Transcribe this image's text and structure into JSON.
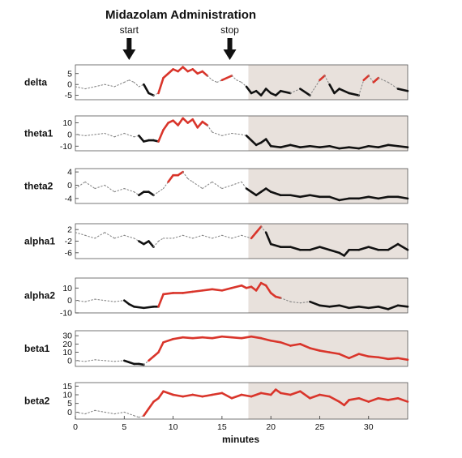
{
  "chart_data": {
    "type": "line",
    "title": "Midazolam Administration",
    "xlabel": "minutes",
    "xlim": [
      0,
      34
    ],
    "x_ticks": [
      0,
      5,
      10,
      15,
      20,
      25,
      30
    ],
    "markers": [
      {
        "label": "start",
        "x": 5.5
      },
      {
        "label": "stop",
        "x": 15.8
      }
    ],
    "shaded_region": {
      "x_start": 17.7,
      "x_end": 34,
      "color": "#e8e1dc"
    },
    "colors": {
      "elevated": "#d9352b",
      "depressed": "#111111",
      "neutral": "#888888"
    },
    "panels": [
      {
        "name": "delta",
        "ylim": [
          -7,
          9
        ],
        "yticks": [
          5,
          0,
          -5
        ],
        "x": [
          0,
          1,
          2,
          3,
          4,
          5,
          5.5,
          6,
          6.5,
          7,
          7.5,
          8,
          8.5,
          9,
          9.5,
          10,
          10.5,
          11,
          11.5,
          12,
          12.5,
          13,
          13.5,
          14,
          14.5,
          15,
          15.5,
          16,
          16.5,
          17,
          17.5,
          18,
          18.5,
          19,
          19.5,
          20,
          20.5,
          21,
          22,
          23,
          24,
          25,
          25.5,
          26,
          26.5,
          27,
          28,
          29,
          29.5,
          30,
          30.5,
          31,
          32,
          33,
          34
        ],
        "y": [
          -1,
          -2,
          -1,
          0,
          -1,
          1,
          2,
          1,
          -1,
          0,
          -4,
          -5,
          -4,
          3,
          5,
          7,
          6,
          8,
          6,
          7,
          5,
          6,
          4,
          2,
          1,
          2,
          3,
          4,
          2,
          1,
          -1,
          -4,
          -3,
          -5,
          -2,
          -4,
          -5,
          -3,
          -4,
          -2,
          -5,
          2,
          4,
          0,
          -4,
          -2,
          -4,
          -5,
          2,
          4,
          1,
          3,
          1,
          -2,
          -3
        ],
        "state": [
          "n",
          "n",
          "n",
          "n",
          "n",
          "n",
          "n",
          "n",
          "n",
          "n",
          "d",
          "d",
          "n",
          "e",
          "e",
          "e",
          "e",
          "e",
          "e",
          "e",
          "e",
          "e",
          "e",
          "n",
          "n",
          "n",
          "e",
          "e",
          "n",
          "n",
          "n",
          "d",
          "d",
          "d",
          "d",
          "d",
          "d",
          "d",
          "d",
          "n",
          "d",
          "n",
          "e",
          "n",
          "d",
          "d",
          "d",
          "d",
          "n",
          "e",
          "n",
          "e",
          "n",
          "n",
          "d"
        ]
      },
      {
        "name": "theta1",
        "ylim": [
          -14,
          16
        ],
        "yticks": [
          10,
          0,
          -10
        ],
        "x": [
          0,
          1,
          2,
          3,
          4,
          5,
          6,
          6.5,
          7,
          7.5,
          8,
          8.5,
          9,
          9.5,
          10,
          10.5,
          11,
          11.5,
          12,
          12.5,
          13,
          13.5,
          14,
          15,
          16,
          17,
          17.5,
          18,
          18.5,
          19,
          19.5,
          20,
          21,
          22,
          23,
          24,
          25,
          26,
          27,
          28,
          29,
          30,
          31,
          32,
          33,
          34
        ],
        "y": [
          0,
          -1,
          0,
          1,
          -2,
          1,
          -2,
          -1,
          -6,
          -5,
          -5,
          -6,
          4,
          10,
          12,
          8,
          14,
          10,
          13,
          6,
          11,
          8,
          2,
          -1,
          1,
          0,
          -1,
          -5,
          -9,
          -7,
          -4,
          -10,
          -11,
          -9,
          -11,
          -10,
          -11,
          -10,
          -12,
          -11,
          -12,
          -10,
          -11,
          -9,
          -10,
          -11
        ],
        "state": [
          "n",
          "n",
          "n",
          "n",
          "n",
          "n",
          "n",
          "n",
          "d",
          "d",
          "d",
          "d",
          "e",
          "e",
          "e",
          "e",
          "e",
          "e",
          "e",
          "e",
          "e",
          "e",
          "n",
          "n",
          "n",
          "n",
          "n",
          "d",
          "d",
          "d",
          "d",
          "d",
          "d",
          "d",
          "d",
          "d",
          "d",
          "d",
          "d",
          "d",
          "d",
          "d",
          "d",
          "d",
          "d",
          "d"
        ]
      },
      {
        "name": "theta2",
        "ylim": [
          -5.5,
          5
        ],
        "yticks": [
          4,
          0,
          -4
        ],
        "x": [
          0,
          1,
          2,
          3,
          4,
          5,
          6,
          6.5,
          7,
          7.5,
          8,
          8.5,
          9,
          9.5,
          10,
          10.5,
          11,
          11.5,
          12,
          13,
          14,
          15,
          16,
          17,
          17.5,
          18,
          18.5,
          19,
          19.5,
          20,
          21,
          22,
          23,
          24,
          25,
          26,
          27,
          28,
          29,
          30,
          31,
          32,
          33,
          34
        ],
        "y": [
          -1,
          1,
          -1,
          0,
          -2,
          -1,
          -2,
          -3,
          -2,
          -2,
          -3,
          -2,
          -1,
          1,
          3,
          3,
          4,
          2,
          1,
          -1,
          1,
          -1,
          0,
          1,
          -1,
          -2,
          -3,
          -2,
          -1,
          -2,
          -3,
          -3,
          -3.5,
          -3,
          -3.5,
          -3.5,
          -4.5,
          -4,
          -4,
          -3.5,
          -4,
          -3.5,
          -3.5,
          -4
        ],
        "state": [
          "n",
          "n",
          "n",
          "n",
          "n",
          "n",
          "n",
          "n",
          "d",
          "d",
          "d",
          "n",
          "n",
          "n",
          "e",
          "e",
          "e",
          "n",
          "n",
          "n",
          "n",
          "n",
          "n",
          "n",
          "n",
          "d",
          "d",
          "d",
          "d",
          "d",
          "d",
          "d",
          "d",
          "d",
          "d",
          "d",
          "d",
          "d",
          "d",
          "d",
          "d",
          "d",
          "d",
          "d"
        ]
      },
      {
        "name": "alpha1",
        "ylim": [
          -8,
          4
        ],
        "yticks": [
          2,
          -2,
          -6
        ],
        "x": [
          0,
          1,
          2,
          3,
          4,
          5,
          6,
          6.5,
          7,
          7.5,
          8,
          8.5,
          9,
          10,
          11,
          12,
          13,
          14,
          15,
          16,
          17,
          18,
          18.5,
          19,
          19.5,
          20,
          21,
          22,
          23,
          24,
          25,
          26,
          27,
          27.5,
          28,
          29,
          30,
          31,
          32,
          33,
          34
        ],
        "y": [
          1,
          0,
          -1,
          1,
          -1,
          0,
          -1,
          -2,
          -3,
          -2,
          -4,
          -2,
          -1,
          -1,
          0,
          -1,
          0,
          -1,
          0,
          -1,
          0,
          -1,
          1,
          3,
          1,
          -3,
          -4,
          -4,
          -5,
          -5,
          -4,
          -5,
          -6,
          -7,
          -5,
          -5,
          -4,
          -5,
          -5,
          -3,
          -5
        ],
        "state": [
          "n",
          "n",
          "n",
          "n",
          "n",
          "n",
          "n",
          "n",
          "d",
          "d",
          "d",
          "n",
          "n",
          "n",
          "n",
          "n",
          "n",
          "n",
          "n",
          "n",
          "n",
          "n",
          "e",
          "e",
          "n",
          "d",
          "d",
          "d",
          "d",
          "d",
          "d",
          "d",
          "d",
          "d",
          "d",
          "d",
          "d",
          "d",
          "d",
          "d",
          "d"
        ]
      },
      {
        "name": "alpha2",
        "ylim": [
          -10,
          18
        ],
        "yticks": [
          10,
          0,
          -10
        ],
        "x": [
          0,
          1,
          2,
          3,
          4,
          5,
          5.5,
          6,
          7,
          8,
          8.5,
          9,
          10,
          11,
          12,
          13,
          14,
          15,
          16,
          17,
          17.5,
          18,
          18.5,
          19,
          19.5,
          20,
          20.5,
          21,
          22,
          23,
          24,
          25,
          26,
          27,
          28,
          29,
          30,
          31,
          32,
          33,
          34
        ],
        "y": [
          0,
          -1,
          1,
          0,
          -1,
          0,
          -3,
          -5,
          -6,
          -5,
          -5,
          5,
          6,
          6,
          7,
          8,
          9,
          8,
          10,
          12,
          10,
          11,
          8,
          14,
          12,
          6,
          3,
          2,
          -1,
          -2,
          -1,
          -4,
          -5,
          -4,
          -6,
          -5,
          -6,
          -5,
          -7,
          -4,
          -5
        ],
        "state": [
          "n",
          "n",
          "n",
          "n",
          "n",
          "n",
          "d",
          "d",
          "d",
          "d",
          "d",
          "e",
          "e",
          "e",
          "e",
          "e",
          "e",
          "e",
          "e",
          "e",
          "e",
          "e",
          "e",
          "e",
          "e",
          "e",
          "e",
          "e",
          "n",
          "n",
          "n",
          "d",
          "d",
          "d",
          "d",
          "d",
          "d",
          "d",
          "d",
          "d",
          "d"
        ]
      },
      {
        "name": "beta1",
        "ylim": [
          -7,
          36
        ],
        "yticks": [
          30,
          20,
          10,
          0
        ],
        "x": [
          0,
          1,
          2,
          3,
          4,
          5,
          5.5,
          6,
          6.5,
          7,
          7.5,
          8,
          8.5,
          9,
          10,
          11,
          12,
          13,
          14,
          15,
          16,
          17,
          18,
          19,
          20,
          21,
          22,
          23,
          24,
          25,
          26,
          27,
          28,
          29,
          30,
          31,
          32,
          33,
          34
        ],
        "y": [
          0,
          -1,
          1,
          0,
          -1,
          0,
          -2,
          -4,
          -4,
          -5,
          0,
          5,
          10,
          22,
          26,
          28,
          27,
          28,
          27,
          29,
          28,
          27,
          29,
          27,
          24,
          22,
          18,
          20,
          15,
          12,
          10,
          8,
          3,
          8,
          5,
          4,
          2,
          3,
          1
        ],
        "state": [
          "n",
          "n",
          "n",
          "n",
          "n",
          "n",
          "d",
          "d",
          "d",
          "d",
          "n",
          "e",
          "e",
          "e",
          "e",
          "e",
          "e",
          "e",
          "e",
          "e",
          "e",
          "e",
          "e",
          "e",
          "e",
          "e",
          "e",
          "e",
          "e",
          "e",
          "e",
          "e",
          "e",
          "e",
          "e",
          "e",
          "e",
          "e",
          "e"
        ]
      },
      {
        "name": "beta2",
        "ylim": [
          -4,
          17
        ],
        "yticks": [
          15,
          10,
          5,
          0
        ],
        "x": [
          0,
          1,
          2,
          3,
          4,
          5,
          6,
          6.5,
          7,
          7.5,
          8,
          8.5,
          9,
          10,
          11,
          12,
          13,
          14,
          15,
          16,
          17,
          18,
          19,
          20,
          20.5,
          21,
          22,
          23,
          24,
          25,
          26,
          27,
          27.5,
          28,
          29,
          30,
          31,
          32,
          33,
          34
        ],
        "y": [
          0,
          -1,
          1,
          0,
          -1,
          0,
          -2,
          -3,
          -2,
          2,
          6,
          8,
          12,
          10,
          9,
          10,
          9,
          10,
          11,
          8,
          10,
          9,
          11,
          10,
          13,
          11,
          10,
          12,
          8,
          10,
          9,
          6,
          4,
          7,
          8,
          6,
          8,
          7,
          8,
          6
        ],
        "state": [
          "n",
          "n",
          "n",
          "n",
          "n",
          "n",
          "n",
          "n",
          "n",
          "e",
          "e",
          "e",
          "e",
          "e",
          "e",
          "e",
          "e",
          "e",
          "e",
          "e",
          "e",
          "e",
          "e",
          "e",
          "e",
          "e",
          "e",
          "e",
          "e",
          "e",
          "e",
          "e",
          "e",
          "e",
          "e",
          "e",
          "e",
          "e",
          "e",
          "e"
        ]
      }
    ]
  }
}
